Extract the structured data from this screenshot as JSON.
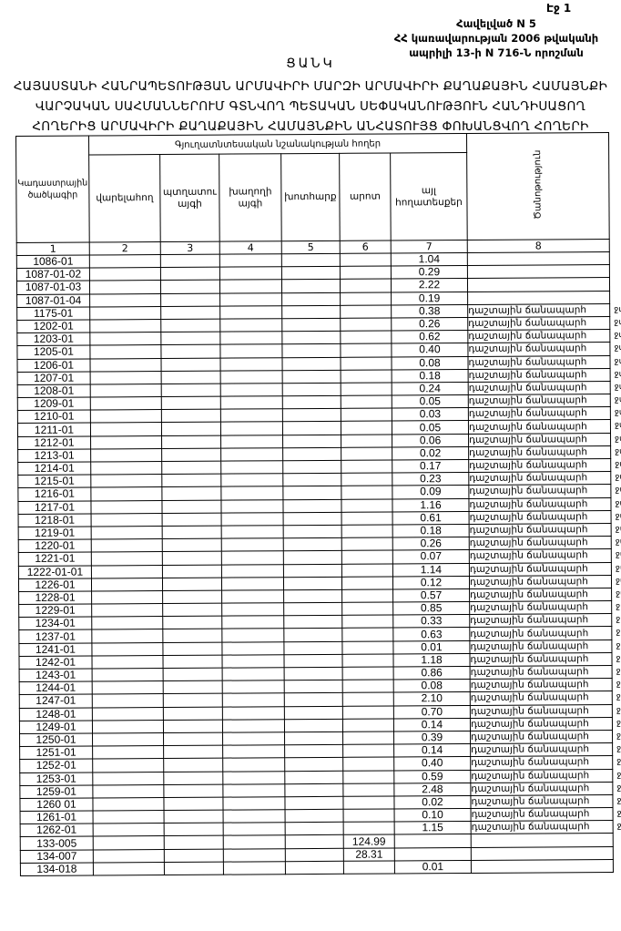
{
  "page_number": "Էջ 1",
  "annex": [
    "Հավելված N 5",
    "ՀՀ կառավարության 2006 թվականի",
    "ապրիլի 13-ի N 716-Ն որոշման"
  ],
  "list_title": "ՑԱՆԿ",
  "main_title": [
    "ՀԱՅԱՍՏԱՆԻ ՀԱՆՐԱՊԵՏՈՒԹՅԱՆ ԱՐՄԱՎԻՐԻ ՄԱՐԶԻ ԱՐՄԱՎԻՐԻ ՔԱՂԱՔԱՅԻՆ ՀԱՄԱՅՆՔԻ",
    "ՎԱՐՉԱԿԱՆ ՍԱՀՄԱՆՆԵՐՈՒՄ ԳՏՆՎՈՂ ՊԵՏԱԿԱՆ ՍԵՓԱԿԱՆՈՒԹՅՈՒՆ ՀԱՆԴԻՍԱՑՈՂ",
    "ՀՈՂԵՐԻՑ ԱՐՄԱՎԻՐԻ ՔԱՂԱՔԱՅԻՆ ՀԱՄԱՅՆՔԻՆ ԱՆՀԱՏՈՒՅՑ ՓՈԽԱՆՑՎՈՂ ՀՈՂԵՐԻ"
  ],
  "table": {
    "group_header": "Գյուղատնտեսական նշանակության հողեր",
    "headers": [
      "Կադաստրային ծածկագիր",
      "վարելահող",
      "պտղատու այգի",
      "խաղողի այգի",
      "խոտհարք",
      "արոտ",
      "այլ հողատեսքեր",
      "Ծանոթություն"
    ],
    "column_numbers": [
      "1",
      "2",
      "3",
      "4",
      "5",
      "6",
      "7",
      "8"
    ],
    "note_text": "դաշտային ճանապարհ",
    "margin_mark": "ջմ",
    "rows": [
      {
        "code": "1086-01",
        "c6": "",
        "c7": "1.04",
        "note": false
      },
      {
        "code": "1087-01-02",
        "c6": "",
        "c7": "0.29",
        "note": false
      },
      {
        "code": "1087-01-03",
        "c6": "",
        "c7": "2.22",
        "note": false
      },
      {
        "code": "1087-01-04",
        "c6": "",
        "c7": "0.19",
        "note": false
      },
      {
        "code": "1175-01",
        "c6": "",
        "c7": "0.38",
        "note": true
      },
      {
        "code": "1202-01",
        "c6": "",
        "c7": "0.26",
        "note": true
      },
      {
        "code": "1203-01",
        "c6": "",
        "c7": "0.62",
        "note": true
      },
      {
        "code": "1205-01",
        "c6": "",
        "c7": "0.40",
        "note": true
      },
      {
        "code": "1206-01",
        "c6": "",
        "c7": "0.08",
        "note": true
      },
      {
        "code": "1207-01",
        "c6": "",
        "c7": "0.18",
        "note": true
      },
      {
        "code": "1208-01",
        "c6": "",
        "c7": "0.24",
        "note": true
      },
      {
        "code": "1209-01",
        "c6": "",
        "c7": "0.05",
        "note": true
      },
      {
        "code": "1210-01",
        "c6": "",
        "c7": "0.03",
        "note": true
      },
      {
        "code": "1211-01",
        "c6": "",
        "c7": "0.05",
        "note": true
      },
      {
        "code": "1212-01",
        "c6": "",
        "c7": "0.06",
        "note": true
      },
      {
        "code": "1213-01",
        "c6": "",
        "c7": "0.02",
        "note": true
      },
      {
        "code": "1214-01",
        "c6": "",
        "c7": "0.17",
        "note": true
      },
      {
        "code": "1215-01",
        "c6": "",
        "c7": "0.23",
        "note": true
      },
      {
        "code": "1216-01",
        "c6": "",
        "c7": "0.09",
        "note": true
      },
      {
        "code": "1217-01",
        "c6": "",
        "c7": "1.16",
        "note": true
      },
      {
        "code": "1218-01",
        "c6": "",
        "c7": "0.61",
        "note": true
      },
      {
        "code": "1219-01",
        "c6": "",
        "c7": "0.18",
        "note": true
      },
      {
        "code": "1220-01",
        "c6": "",
        "c7": "0.26",
        "note": true
      },
      {
        "code": "1221-01",
        "c6": "",
        "c7": "0.07",
        "note": true
      },
      {
        "code": "1222-01-01",
        "c6": "",
        "c7": "1.14",
        "note": true
      },
      {
        "code": "1226-01",
        "c6": "",
        "c7": "0.12",
        "note": true
      },
      {
        "code": "1228-01",
        "c6": "",
        "c7": "0.57",
        "note": true
      },
      {
        "code": "1229-01",
        "c6": "",
        "c7": "0.85",
        "note": true
      },
      {
        "code": "1234-01",
        "c6": "",
        "c7": "0.33",
        "note": true
      },
      {
        "code": "1237-01",
        "c6": "",
        "c7": "0.63",
        "note": true
      },
      {
        "code": "1241-01",
        "c6": "",
        "c7": "0.01",
        "note": true
      },
      {
        "code": "1242-01",
        "c6": "",
        "c7": "1.18",
        "note": true
      },
      {
        "code": "1243-01",
        "c6": "",
        "c7": "0.86",
        "note": true
      },
      {
        "code": "1244-01",
        "c6": "",
        "c7": "0.08",
        "note": true
      },
      {
        "code": "1247-01",
        "c6": "",
        "c7": "2.10",
        "note": true
      },
      {
        "code": "1248-01",
        "c6": "",
        "c7": "0.70",
        "note": true
      },
      {
        "code": "1249-01",
        "c6": "",
        "c7": "0.14",
        "note": true
      },
      {
        "code": "1250-01",
        "c6": "",
        "c7": "0.39",
        "note": true
      },
      {
        "code": "1251-01",
        "c6": "",
        "c7": "0.14",
        "note": true
      },
      {
        "code": "1252-01",
        "c6": "",
        "c7": "0.40",
        "note": true
      },
      {
        "code": "1253-01",
        "c6": "",
        "c7": "0.59",
        "note": true
      },
      {
        "code": "1259-01",
        "c6": "",
        "c7": "2.48",
        "note": true
      },
      {
        "code": "1260 01",
        "c6": "",
        "c7": "0.02",
        "note": true
      },
      {
        "code": "1261-01",
        "c6": "",
        "c7": "0.10",
        "note": true
      },
      {
        "code": "1262-01",
        "c6": "",
        "c7": "1.15",
        "note": true
      },
      {
        "code": "133-005",
        "c6": "124.99",
        "c7": "",
        "note": false
      },
      {
        "code": "134-007",
        "c6": "28.31",
        "c7": "",
        "note": false
      },
      {
        "code": "134-018",
        "c6": "",
        "c7": "0.01",
        "note": false
      }
    ]
  }
}
